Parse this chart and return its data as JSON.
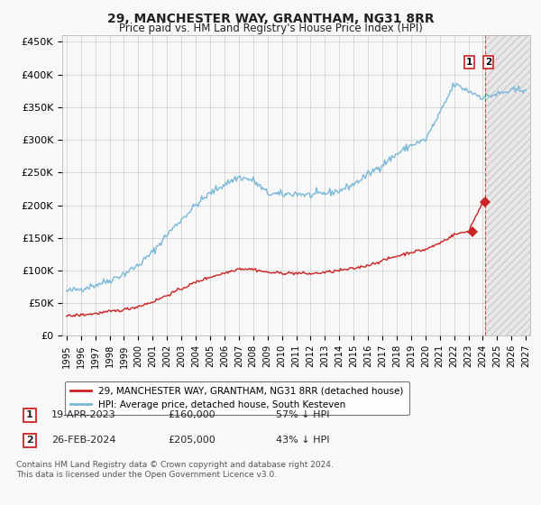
{
  "title": "29, MANCHESTER WAY, GRANTHAM, NG31 8RR",
  "subtitle": "Price paid vs. HM Land Registry's House Price Index (HPI)",
  "ylim": [
    0,
    460000
  ],
  "yticks": [
    0,
    50000,
    100000,
    150000,
    200000,
    250000,
    300000,
    350000,
    400000,
    450000
  ],
  "ytick_labels": [
    "£0",
    "£50K",
    "£100K",
    "£150K",
    "£200K",
    "£250K",
    "£300K",
    "£350K",
    "£400K",
    "£450K"
  ],
  "xlim_start": 1994.7,
  "xlim_end": 2027.3,
  "hpi_color": "#7ab8d9",
  "price_color": "#cc2222",
  "dashed_line_color": "#cc2222",
  "marker_color": "#cc2222",
  "legend_label_price": "29, MANCHESTER WAY, GRANTHAM, NG31 8RR (detached house)",
  "legend_label_hpi": "HPI: Average price, detached house, South Kesteven",
  "transaction1_date": "19-APR-2023",
  "transaction1_price": "£160,000",
  "transaction1_pct": "57% ↓ HPI",
  "transaction2_date": "26-FEB-2024",
  "transaction2_price": "£205,000",
  "transaction2_pct": "43% ↓ HPI",
  "footnote1": "Contains HM Land Registry data © Crown copyright and database right 2024.",
  "footnote2": "This data is licensed under the Open Government Licence v3.0.",
  "background_color": "#f8f8f8",
  "plot_bg_color": "#f8f8f8",
  "grid_color": "#cccccc",
  "transaction1_x": 2023.3,
  "transaction2_x": 2024.15,
  "transaction1_y": 160000,
  "transaction2_y": 205000,
  "hatch_start": 2024.15,
  "hpi_data_years": [
    1995,
    1996,
    1997,
    1998,
    1999,
    2000,
    2001,
    2002,
    2003,
    2004,
    2005,
    2006,
    2007,
    2008,
    2009,
    2010,
    2011,
    2012,
    2013,
    2014,
    2015,
    2016,
    2017,
    2018,
    2019,
    2020,
    2021,
    2022,
    2023,
    2024,
    2025,
    2026,
    2027
  ],
  "hpi_data_values": [
    68000,
    72000,
    78000,
    85000,
    95000,
    108000,
    128000,
    155000,
    178000,
    200000,
    218000,
    232000,
    243000,
    238000,
    218000,
    216000,
    218000,
    215000,
    218000,
    222000,
    232000,
    247000,
    262000,
    278000,
    292000,
    300000,
    340000,
    385000,
    375000,
    365000,
    370000,
    375000,
    378000
  ],
  "prop_data_years": [
    1995,
    1996,
    1997,
    1998,
    1999,
    2000,
    2001,
    2002,
    2003,
    2004,
    2005,
    2006,
    2007,
    2008,
    2009,
    2010,
    2011,
    2012,
    2013,
    2014,
    2015,
    2016,
    2017,
    2018,
    2019,
    2020,
    2021,
    2022,
    2023,
    2024
  ],
  "prop_data_values": [
    30000,
    32000,
    34000,
    37000,
    40000,
    45000,
    52000,
    62000,
    72000,
    82000,
    90000,
    96000,
    103000,
    102000,
    97000,
    96000,
    96000,
    95000,
    97000,
    100000,
    103000,
    108000,
    115000,
    122000,
    128000,
    132000,
    142000,
    155000,
    160000,
    205000
  ]
}
